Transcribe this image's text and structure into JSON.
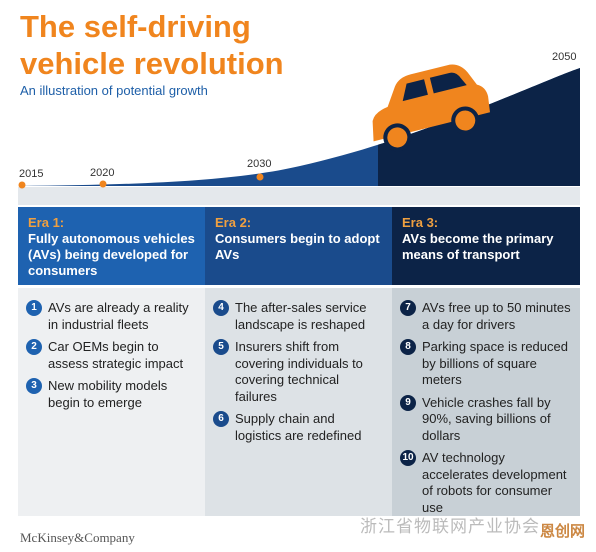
{
  "header": {
    "title": "The self-driving vehicle revolution",
    "subtitle": "An illustration of potential growth"
  },
  "timeline": {
    "years": [
      "2015",
      "2020",
      "2030",
      "2050"
    ]
  },
  "eras": [
    {
      "label": "Era 1:",
      "title": "Fully autonomous vehicles (AVs) being developed for consumers",
      "items": [
        {
          "number": "1",
          "text": "AVs are already a reality in industrial fleets"
        },
        {
          "number": "2",
          "text": "Car OEMs begin to assess strategic impact"
        },
        {
          "number": "3",
          "text": "New mobility models begin to emerge"
        }
      ]
    },
    {
      "label": "Era 2:",
      "title": "Consumers begin to adopt AVs",
      "items": [
        {
          "number": "4",
          "text": "The after-sales service landscape is reshaped"
        },
        {
          "number": "5",
          "text": "Insurers shift from covering individuals to covering technical failures"
        },
        {
          "number": "6",
          "text": "Supply chain and logistics are redefined"
        }
      ]
    },
    {
      "label": "Era 3:",
      "title": "AVs become the primary means of transport",
      "items": [
        {
          "number": "7",
          "text": "AVs free up to 50 minutes a day for drivers"
        },
        {
          "number": "8",
          "text": "Parking space is reduced by billions of square meters"
        },
        {
          "number": "9",
          "text": "Vehicle crashes fall by 90%, saving billions of dollars"
        },
        {
          "number": "10",
          "text": "AV technology accelerates development of robots for consumer use"
        }
      ]
    }
  ],
  "footer": {
    "brand": "McKinsey&Company",
    "watermark": "浙江省物联网产业协会",
    "watermark_logo": "恩创网"
  }
}
